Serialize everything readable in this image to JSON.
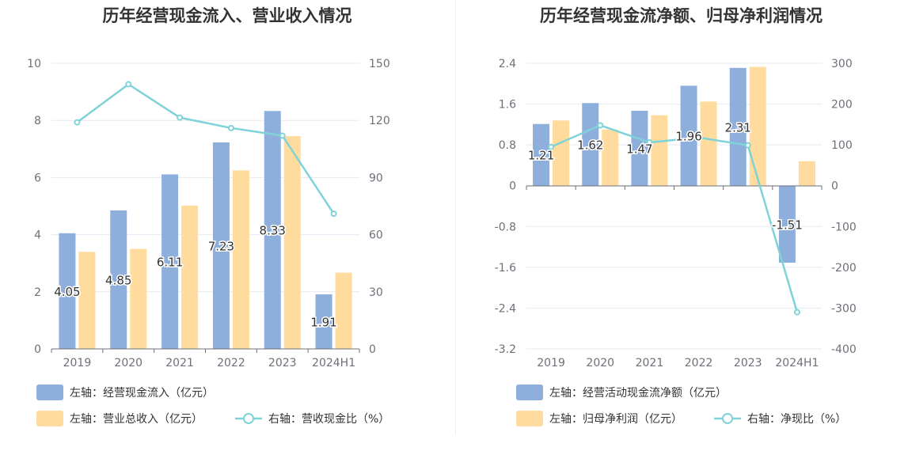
{
  "chart_data": [
    {
      "type": "bar",
      "title": "历年经营现金流入、营业收入情况",
      "categories": [
        "2019",
        "2020",
        "2021",
        "2022",
        "2023",
        "2024H1"
      ],
      "left_axis": {
        "ticks": [
          "0",
          "2",
          "4",
          "6",
          "8",
          "10"
        ],
        "min": 0,
        "max": 10
      },
      "right_axis": {
        "ticks": [
          "0",
          "30",
          "60",
          "90",
          "120",
          "150"
        ],
        "min": 0,
        "max": 150
      },
      "series": [
        {
          "name": "左轴：经营现金流入（亿元）",
          "axis": "left",
          "kind": "bar",
          "color": "#8eaedb",
          "values": [
            4.05,
            4.85,
            6.11,
            7.23,
            8.33,
            1.91
          ],
          "labels": [
            "4.05",
            "4.85",
            "6.11",
            "7.23",
            "8.33",
            "1.91"
          ]
        },
        {
          "name": "左轴：营业总收入（亿元）",
          "axis": "left",
          "kind": "bar",
          "color": "#ffdb9e",
          "values": [
            3.4,
            3.5,
            5.02,
            6.25,
            7.45,
            2.67
          ]
        },
        {
          "name": "右轴：营收现金比（%）",
          "axis": "right",
          "kind": "line",
          "color": "#7fd3d8",
          "values": [
            119,
            139,
            121.5,
            116,
            112,
            71
          ]
        }
      ],
      "grid": true,
      "legend_position": "bottom"
    },
    {
      "type": "bar",
      "title": "历年经营现金流净额、归母净利润情况",
      "categories": [
        "2019",
        "2020",
        "2021",
        "2022",
        "2023",
        "2024H1"
      ],
      "left_axis": {
        "ticks": [
          "-3.2",
          "-2.4",
          "-1.6",
          "-0.8",
          "0",
          "0.8",
          "1.6",
          "2.4"
        ],
        "min": -3.2,
        "max": 2.4
      },
      "right_axis": {
        "ticks": [
          "-400",
          "-300",
          "-200",
          "-100",
          "0",
          "100",
          "200",
          "300"
        ],
        "min": -400,
        "max": 300
      },
      "series": [
        {
          "name": "左轴：经营活动现金流净额（亿元）",
          "axis": "left",
          "kind": "bar",
          "color": "#8eaedb",
          "values": [
            1.21,
            1.62,
            1.47,
            1.96,
            2.31,
            -1.51
          ],
          "labels": [
            "1.21",
            "1.62",
            "1.47",
            "1.96",
            "2.31",
            "-1.51"
          ]
        },
        {
          "name": "左轴：归母净利润（亿元）",
          "axis": "left",
          "kind": "bar",
          "color": "#ffdb9e",
          "values": [
            1.28,
            1.1,
            1.38,
            1.65,
            2.33,
            0.48
          ]
        },
        {
          "name": "右轴：净现比（%）",
          "axis": "right",
          "kind": "line",
          "color": "#7fd3d8",
          "values": [
            95,
            148,
            106,
            118,
            99,
            -310
          ]
        }
      ],
      "grid": true,
      "legend_position": "bottom"
    }
  ]
}
